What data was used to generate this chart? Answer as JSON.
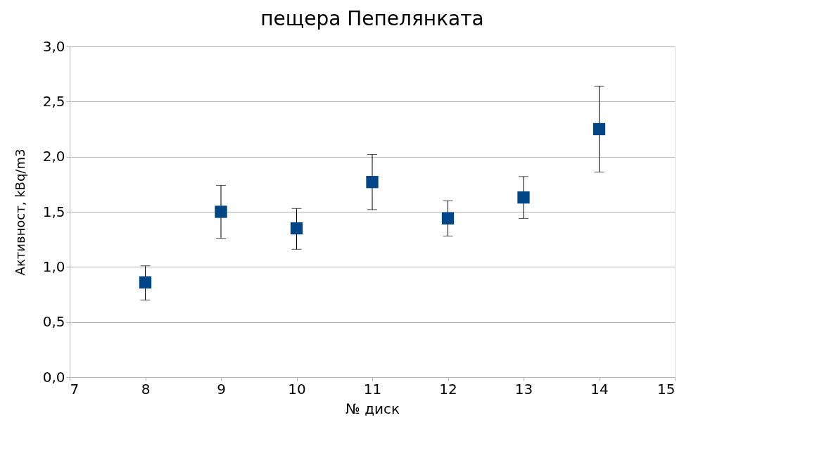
{
  "chart_data": {
    "type": "scatter",
    "title": "пещера Пепелянката",
    "xlabel": "№ диск",
    "ylabel": "Активност, kBq/m3",
    "x": [
      8,
      9,
      10,
      11,
      12,
      13,
      14
    ],
    "series": [
      {
        "color": "#004586",
        "values": [
          0.86,
          1.5,
          1.35,
          1.77,
          1.44,
          1.63,
          2.25
        ],
        "errors": [
          [
            0.7,
            1.01
          ],
          [
            1.26,
            1.74
          ],
          [
            1.16,
            1.53
          ],
          [
            1.52,
            2.02
          ],
          [
            1.28,
            1.6
          ],
          [
            1.44,
            1.82
          ],
          [
            1.86,
            2.64
          ]
        ]
      }
    ],
    "xlim": [
      7,
      15
    ],
    "xticks": [
      7,
      8,
      9,
      10,
      11,
      12,
      13,
      14,
      15
    ],
    "ylim": [
      0,
      3
    ],
    "yticks": [
      {
        "value": 0,
        "label": "0,0"
      },
      {
        "value": 0.5,
        "label": "0,5"
      },
      {
        "value": 1,
        "label": "1,0"
      },
      {
        "value": 1.5,
        "label": "1,5"
      },
      {
        "value": 2,
        "label": "2,0"
      },
      {
        "value": 2.5,
        "label": "2,5"
      },
      {
        "value": 3,
        "label": "3,0"
      }
    ],
    "grid": "y",
    "marker": "square"
  }
}
